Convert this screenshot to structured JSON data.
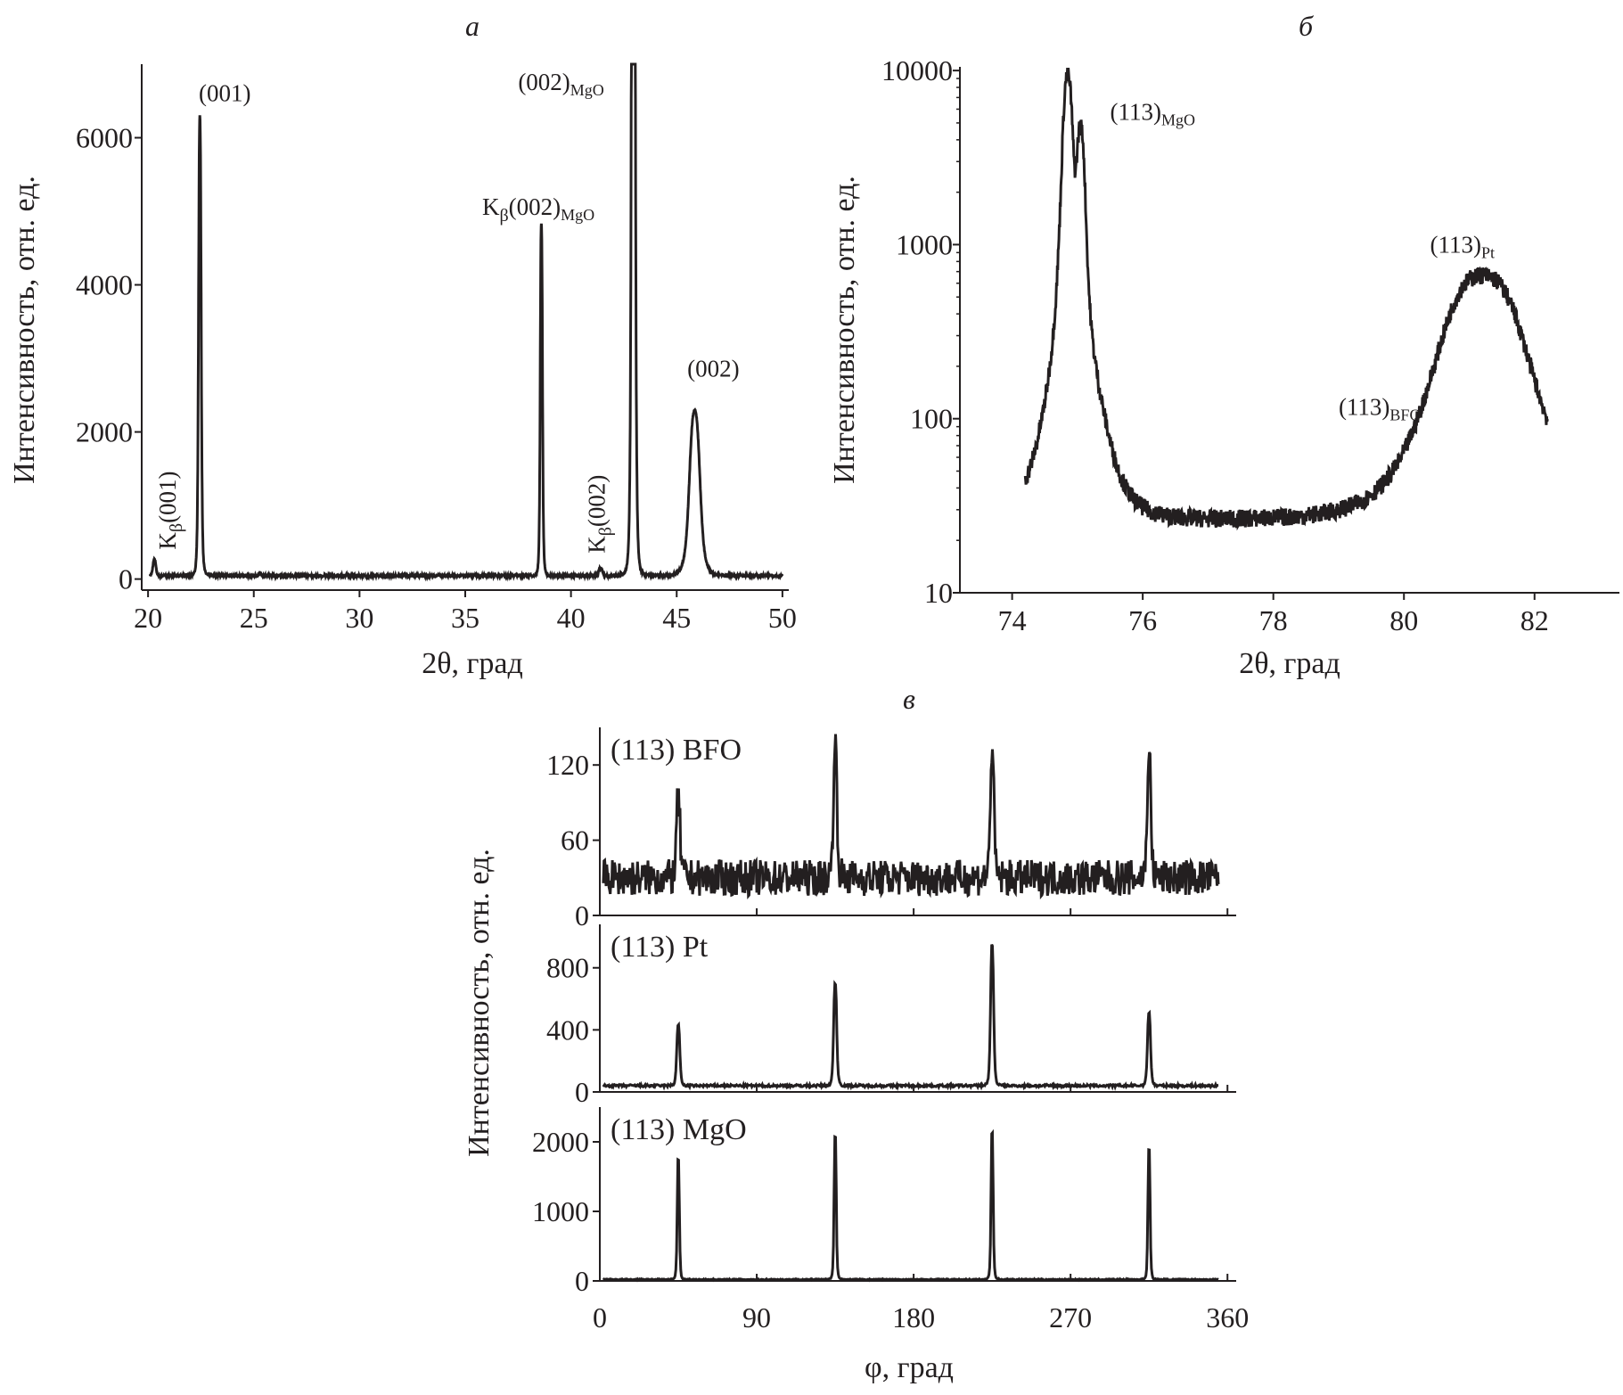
{
  "chart_data": [
    {
      "panel": "а",
      "type": "line",
      "xlabel": "2θ, град",
      "ylabel": "Интенсивность, отн. ед.",
      "xlim": [
        19.7,
        50.3
      ],
      "ylim": [
        -150,
        7000
      ],
      "xticks": [
        20,
        25,
        30,
        35,
        40,
        45,
        50
      ],
      "yticks": [
        0,
        2000,
        4000,
        6000
      ],
      "yscale": "linear",
      "baseline": 45,
      "noise": 12,
      "peaks": [
        {
          "x": 20.3,
          "h": 220,
          "w": 0.08
        },
        {
          "x": 22.45,
          "h": 6250,
          "w": 0.07
        },
        {
          "x": 25.3,
          "h": 50,
          "w": 0.05
        },
        {
          "x": 38.6,
          "h": 4800,
          "w": 0.06
        },
        {
          "x": 41.4,
          "h": 110,
          "w": 0.1
        },
        {
          "x": 42.95,
          "h": 20000,
          "w": 0.08
        },
        {
          "x": 45.85,
          "h": 2250,
          "w": 0.28
        }
      ],
      "annotations": [
        {
          "text": "(001)",
          "x": 22.4,
          "y": 6500
        },
        {
          "base": "K",
          "sub": "β",
          "text": "(002)",
          "sub2": "MgO",
          "x": 35.8,
          "y": 4950
        },
        {
          "text": "(002)",
          "sub2": "MgO",
          "x": 37.5,
          "y": 6650
        },
        {
          "text": "(002)",
          "x": 45.5,
          "y": 2750
        },
        {
          "base": "K",
          "sub": "β",
          "text": "(001)",
          "x": 21.3,
          "y": 400,
          "vertical": true
        },
        {
          "base": "K",
          "sub": "β",
          "text": "(002)",
          "x": 41.6,
          "y": 350,
          "vertical": true
        }
      ]
    },
    {
      "panel": "б",
      "type": "line",
      "xlabel": "2θ, град",
      "ylabel": "Интенсивность, отн. ед.",
      "xlim": [
        73.2,
        83.3
      ],
      "ylim": [
        10,
        10500
      ],
      "xticks": [
        74,
        76,
        78,
        80,
        82
      ],
      "yticks": [
        10,
        100,
        1000,
        10000
      ],
      "yscale": "log",
      "xrange": [
        74.2,
        82.2
      ],
      "baseline": 26,
      "noise": 0.12,
      "peaks": [
        {
          "x": 74.85,
          "h": 9000,
          "w": 0.07
        },
        {
          "x": 75.05,
          "h": 4300,
          "w": 0.06
        },
        {
          "x": 74.95,
          "h": 250,
          "w": 0.35
        },
        {
          "x": 81.2,
          "h": 640,
          "w": 0.55
        }
      ],
      "annotations": [
        {
          "text": "(113)",
          "sub2": "MgO",
          "x": 75.5,
          "y": 5200
        },
        {
          "text": "(113)",
          "sub2": "Pt",
          "x": 80.4,
          "y": 900
        },
        {
          "text": "(113)",
          "sub2": "BFO",
          "x": 79.0,
          "y": 105
        }
      ]
    },
    {
      "panel": "в",
      "type": "line",
      "xlabel": "φ, град",
      "ylabel": "Интенсивность, отн. ед.",
      "xlim": [
        0,
        365
      ],
      "xticks": [
        0,
        90,
        180,
        270,
        360
      ],
      "subplots": [
        {
          "label": "(113) BFO",
          "ylim": [
            0,
            150
          ],
          "yticks": [
            0,
            60,
            120
          ],
          "baseline": 30,
          "noise": 9,
          "peaks": [
            {
              "x": 45,
              "h": 65,
              "w": 1.2
            },
            {
              "x": 135,
              "h": 105,
              "w": 1.2
            },
            {
              "x": 225,
              "h": 103,
              "w": 1.2
            },
            {
              "x": 315,
              "h": 100,
              "w": 1.2
            }
          ]
        },
        {
          "label": "(113) Pt",
          "ylim": [
            0,
            1080
          ],
          "yticks": [
            0,
            400,
            800
          ],
          "baseline": 40,
          "noise": 8,
          "peaks": [
            {
              "x": 45,
              "h": 400,
              "w": 1.0
            },
            {
              "x": 135,
              "h": 670,
              "w": 1.0
            },
            {
              "x": 225,
              "h": 920,
              "w": 1.0
            },
            {
              "x": 315,
              "h": 480,
              "w": 1.0
            }
          ]
        },
        {
          "label": "(113) MgO",
          "ylim": [
            0,
            2500
          ],
          "yticks": [
            0,
            1000,
            2000
          ],
          "baseline": 20,
          "noise": 8,
          "peaks": [
            {
              "x": 45,
              "h": 1780,
              "w": 0.7
            },
            {
              "x": 135,
              "h": 2130,
              "w": 0.7
            },
            {
              "x": 225,
              "h": 2180,
              "w": 0.7
            },
            {
              "x": 315,
              "h": 1930,
              "w": 0.7
            }
          ]
        }
      ]
    }
  ]
}
